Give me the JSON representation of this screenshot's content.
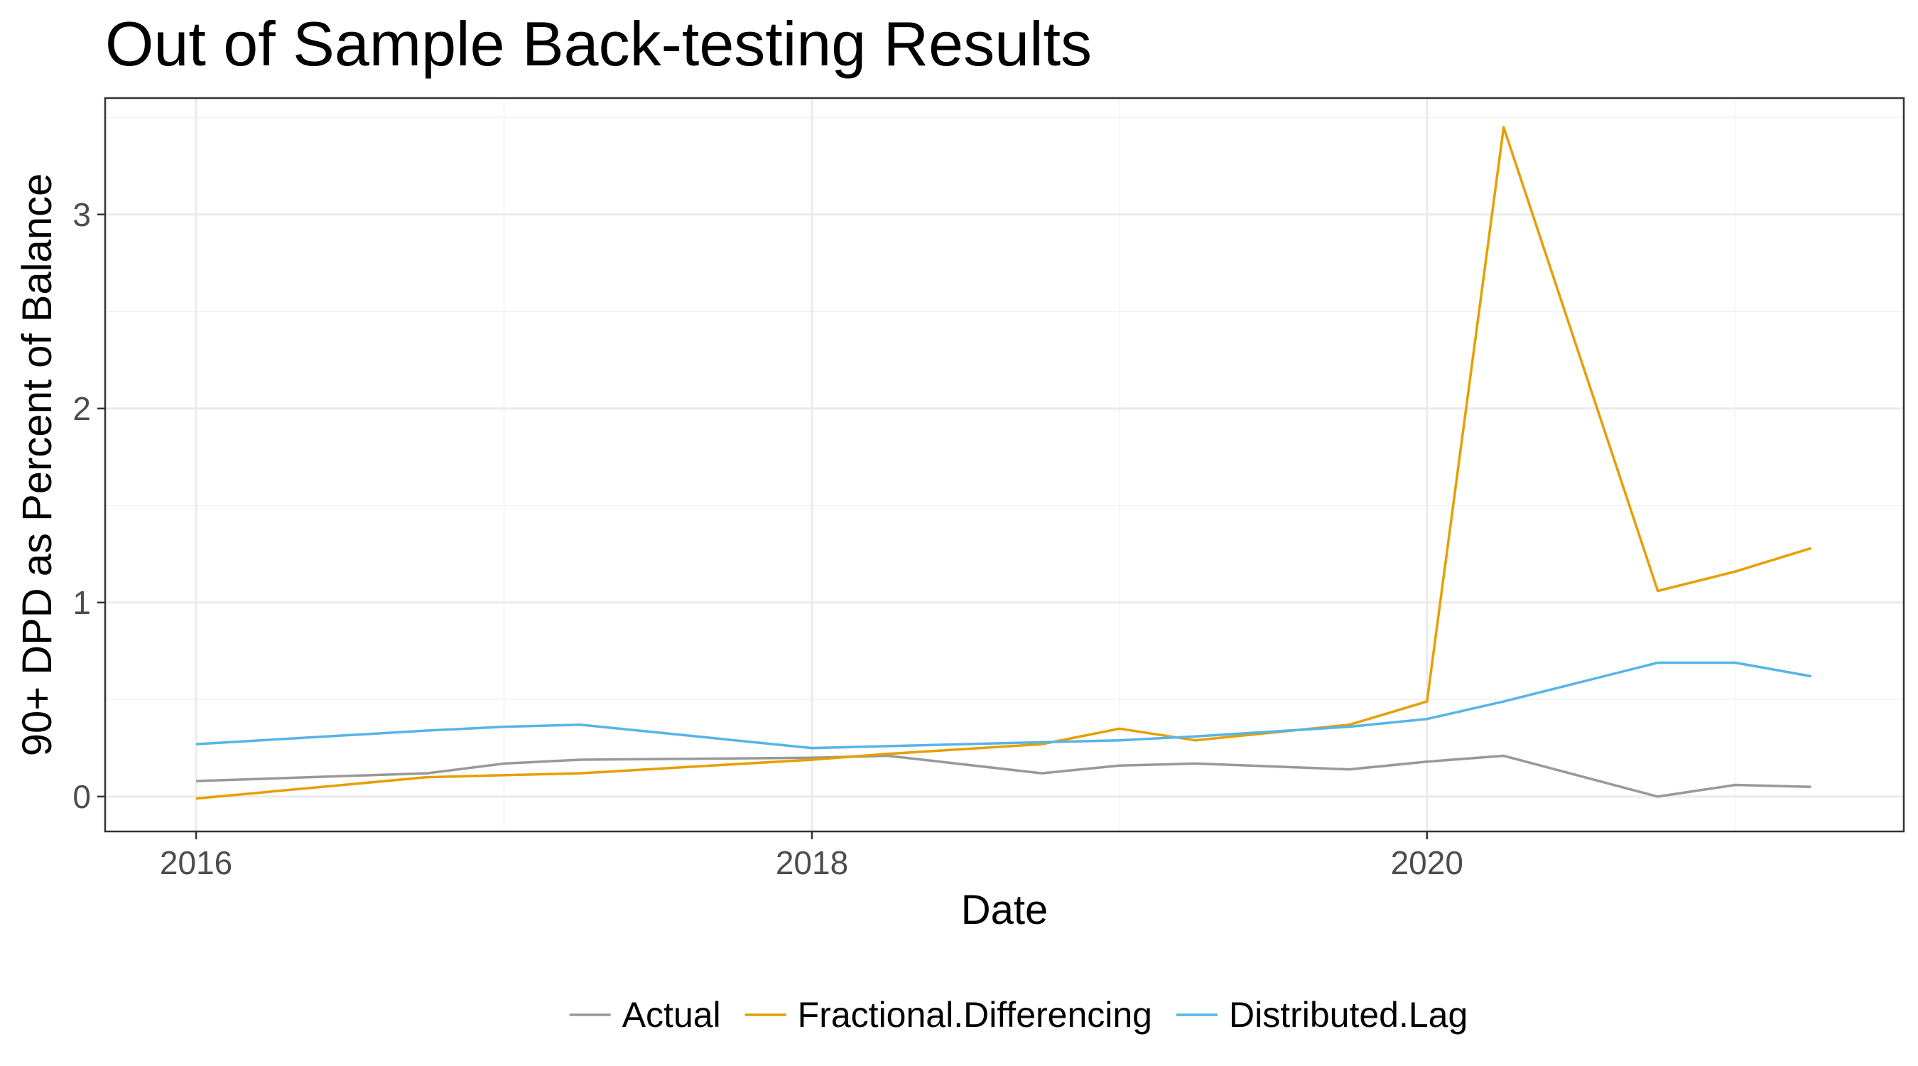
{
  "chart_data": {
    "type": "line",
    "title": "Out of Sample Back-testing Results",
    "xlabel": "Date",
    "ylabel": "90+ DPD as Percent of Balance",
    "xlim": [
      "2015-09-15",
      "2021-07-20"
    ],
    "ylim": [
      -0.18,
      3.6
    ],
    "x_ticks": [
      {
        "value": "2016-01-01",
        "label": "2016"
      },
      {
        "value": "2018-01-01",
        "label": "2018"
      },
      {
        "value": "2020-01-01",
        "label": "2020"
      }
    ],
    "y_ticks": [
      {
        "value": 0,
        "label": "0"
      },
      {
        "value": 1,
        "label": "1"
      },
      {
        "value": 2,
        "label": "2"
      },
      {
        "value": 3,
        "label": "3"
      }
    ],
    "grid": true,
    "legend_position": "bottom",
    "series": [
      {
        "name": "Actual",
        "color": "#999999",
        "points": [
          {
            "x": "2016-01-01",
            "y": 0.08
          },
          {
            "x": "2016-10-01",
            "y": 0.12
          },
          {
            "x": "2017-01-01",
            "y": 0.17
          },
          {
            "x": "2017-04-01",
            "y": 0.19
          },
          {
            "x": "2018-01-01",
            "y": 0.2
          },
          {
            "x": "2018-04-01",
            "y": 0.21
          },
          {
            "x": "2018-10-01",
            "y": 0.12
          },
          {
            "x": "2019-01-01",
            "y": 0.16
          },
          {
            "x": "2019-04-01",
            "y": 0.17
          },
          {
            "x": "2019-10-01",
            "y": 0.14
          },
          {
            "x": "2020-01-01",
            "y": 0.18
          },
          {
            "x": "2020-04-01",
            "y": 0.21
          },
          {
            "x": "2020-10-01",
            "y": 0.0
          },
          {
            "x": "2021-01-01",
            "y": 0.06
          },
          {
            "x": "2021-04-01",
            "y": 0.05
          }
        ]
      },
      {
        "name": "Fractional.Differencing",
        "color": "#E69F00",
        "points": [
          {
            "x": "2016-01-01",
            "y": -0.01
          },
          {
            "x": "2016-10-01",
            "y": 0.1
          },
          {
            "x": "2017-01-01",
            "y": 0.11
          },
          {
            "x": "2017-04-01",
            "y": 0.12
          },
          {
            "x": "2018-01-01",
            "y": 0.19
          },
          {
            "x": "2018-04-01",
            "y": 0.22
          },
          {
            "x": "2018-10-01",
            "y": 0.27
          },
          {
            "x": "2019-01-01",
            "y": 0.35
          },
          {
            "x": "2019-04-01",
            "y": 0.29
          },
          {
            "x": "2019-10-01",
            "y": 0.37
          },
          {
            "x": "2020-01-01",
            "y": 0.49
          },
          {
            "x": "2020-04-01",
            "y": 3.45
          },
          {
            "x": "2020-10-01",
            "y": 1.06
          },
          {
            "x": "2021-01-01",
            "y": 1.16
          },
          {
            "x": "2021-04-01",
            "y": 1.28
          }
        ]
      },
      {
        "name": "Distributed.Lag",
        "color": "#56B4E9",
        "points": [
          {
            "x": "2016-01-01",
            "y": 0.27
          },
          {
            "x": "2016-10-01",
            "y": 0.34
          },
          {
            "x": "2017-01-01",
            "y": 0.36
          },
          {
            "x": "2017-04-01",
            "y": 0.37
          },
          {
            "x": "2018-01-01",
            "y": 0.25
          },
          {
            "x": "2018-04-01",
            "y": 0.26
          },
          {
            "x": "2018-10-01",
            "y": 0.28
          },
          {
            "x": "2019-01-01",
            "y": 0.29
          },
          {
            "x": "2019-04-01",
            "y": 0.31
          },
          {
            "x": "2019-10-01",
            "y": 0.36
          },
          {
            "x": "2020-01-01",
            "y": 0.4
          },
          {
            "x": "2020-04-01",
            "y": 0.49
          },
          {
            "x": "2020-10-01",
            "y": 0.69
          },
          {
            "x": "2021-01-01",
            "y": 0.69
          },
          {
            "x": "2021-04-01",
            "y": 0.62
          }
        ]
      }
    ]
  }
}
